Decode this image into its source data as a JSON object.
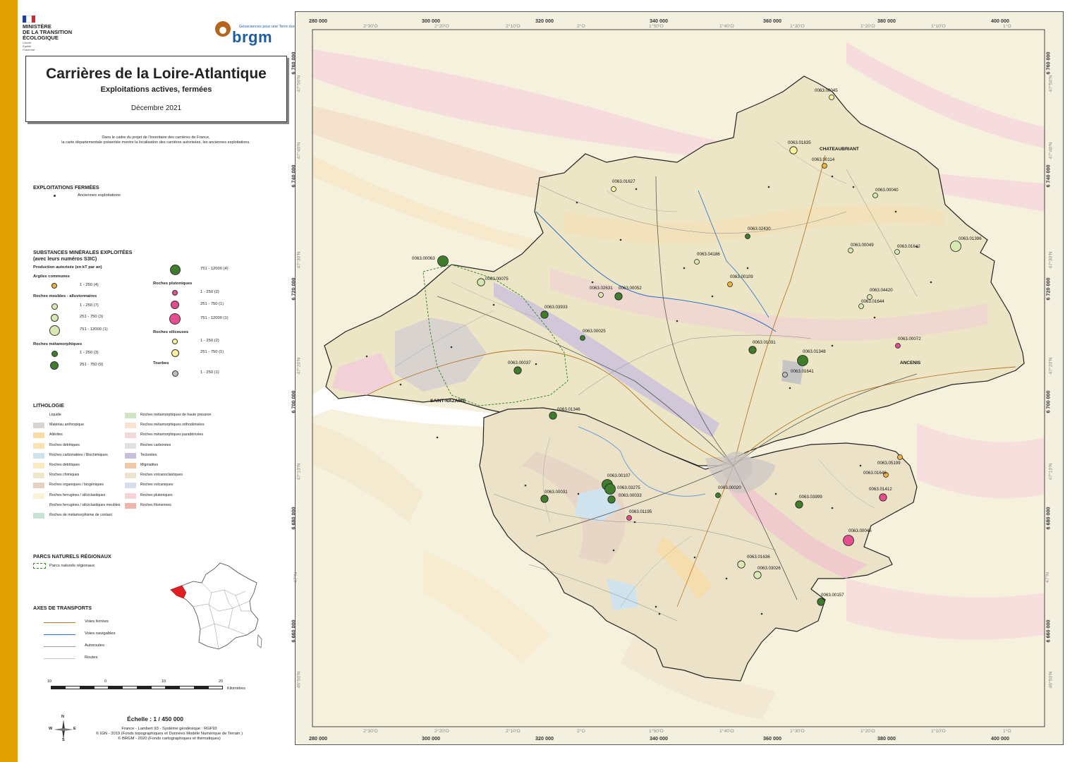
{
  "header": {
    "ministry": "MINISTÈRE\nDE LA TRANSITION\nÉCOLOGIQUE",
    "ministry_motto": "Liberté\nÉgalité\nFraternité",
    "brgm_tagline": "Géosciences pour une Terre durable",
    "brgm_name": "brgm"
  },
  "title": {
    "main": "Carrières de la Loire-Atlantique",
    "subtitle": "Exploitations actives, fermées",
    "date": "Décembre 2021"
  },
  "intro": "Dans le cadre du projet de l'inventaire des carrières de France,\nla carte départementale présentée montre la localisation des carrières autorisées, les anciennes exploitations.",
  "legend": {
    "closed": {
      "heading": "EXPLOITATIONS FERMÉES",
      "item": "Anciennes exploitations"
    },
    "substances": {
      "heading": "SUBSTANCES MINÉRALES EXPLOITÉES",
      "heading2": "(avec leurs numéros S3IC)",
      "production": "Production autorisée (en kT par an)",
      "groups": [
        {
          "name": "Argiles communes",
          "items": [
            {
              "label": "1 - 250 (4)",
              "color": "#f0b43c"
            }
          ]
        },
        {
          "name": "Roches meubles - alluvionnaires",
          "items": [
            {
              "label": "1 - 250 (7)",
              "color": "#d7e8b0"
            },
            {
              "label": "251 - 750 (3)",
              "color": "#d7e8b0"
            },
            {
              "label": "751 - 12000 (1)",
              "color": "#d7e8b0"
            }
          ]
        },
        {
          "name": "Roches métamorphiques",
          "items": [
            {
              "label": "1 - 250 (3)",
              "color": "#3f7d2c"
            },
            {
              "label": "251 - 750 (9)",
              "color": "#3f7d2c"
            },
            {
              "label": "751 - 12000 (4)",
              "color": "#3f7d2c"
            }
          ]
        },
        {
          "name": "Roches plutoniques",
          "items": [
            {
              "label": "1 - 250 (2)",
              "color": "#e64d8f"
            },
            {
              "label": "251 - 750 (1)",
              "color": "#e64d8f"
            },
            {
              "label": "751 - 12000 (1)",
              "color": "#e64d8f"
            }
          ]
        },
        {
          "name": "Roches siliceuses",
          "items": [
            {
              "label": "1 - 250 (2)",
              "color": "#fbf2a0"
            },
            {
              "label": "251 - 750 (1)",
              "color": "#fbf2a0"
            }
          ]
        },
        {
          "name": "Tourbes",
          "items": [
            {
              "label": "1 - 250 (1)",
              "color": "#bdbdbd"
            }
          ]
        }
      ]
    },
    "lithology": {
      "heading": "LITHOLOGIE",
      "col1": [
        {
          "label": "Liquide",
          "color": "#ffffff"
        },
        {
          "label": "Matériau anthropique",
          "color": "#d9d4d0"
        },
        {
          "label": "Altérites",
          "color": "#f7dca8"
        },
        {
          "label": "Roches détritiques",
          "color": "#f9e3b0"
        },
        {
          "label": "Roches carbonatées / Biochimiques",
          "color": "#cfe3ef"
        },
        {
          "label": "Roches détritiques",
          "color": "#f7ecbf"
        },
        {
          "label": "Roches chimiques",
          "color": "#efe8c8"
        },
        {
          "label": "Roches organiques / biogéniques",
          "color": "#e6d2c4"
        },
        {
          "label": "Roches ferrugines / siliciclastiques",
          "color": "#f8f3d4"
        },
        {
          "label": "Roches ferrugines / siliciclastiques meubles",
          "color": "#ffffff"
        },
        {
          "label": "Roches de métamorphisme de contact",
          "color": "#c9e0d5"
        }
      ],
      "col2": [
        {
          "label": "Roches métamorphiques de haute pression",
          "color": "#cfe6c3"
        },
        {
          "label": "Roches métamorphiques orthodérivées",
          "color": "#fce3d0"
        },
        {
          "label": "Roches métamorphiques paradérivées",
          "color": "#f2d9d8"
        },
        {
          "label": "Roches carbonées",
          "color": "#e3e0e0"
        },
        {
          "label": "Tectonites",
          "color": "#c9bfdc"
        },
        {
          "label": "Migmatites",
          "color": "#f2c9a8"
        },
        {
          "label": "Roches volcanoclastiques",
          "color": "#ede3cf"
        },
        {
          "label": "Roches volcaniques",
          "color": "#d8ddef"
        },
        {
          "label": "Roches plutoniques",
          "color": "#f7d2d6"
        },
        {
          "label": "Roches filoniennes",
          "color": "#f2b3a8"
        }
      ]
    },
    "parks": {
      "heading": "PARCS NATURELS RÉGIONAUX",
      "item": "Parcs naturels régionaux"
    },
    "transport": {
      "heading": "AXES DE TRANSPORTS",
      "items": [
        {
          "label": "Voies ferrées",
          "color": "#b5782a"
        },
        {
          "label": "Voies navigables",
          "color": "#2a6fc9"
        },
        {
          "label": "Autoroutes",
          "color": "#9a9a9a"
        },
        {
          "label": "Routes",
          "color": "#c8c8c8"
        }
      ]
    }
  },
  "scale": {
    "ticks": [
      "10",
      "0",
      "10",
      "20"
    ],
    "unit": "Kilomètres",
    "text": "Échelle : 1 / 450 000"
  },
  "compass": {
    "n": "N",
    "s": "S",
    "e": "E",
    "w": "W"
  },
  "footer": "France - Lambert 93 - Système géodésique : RGF93\n© IGN - 2019 (Fonds topographiques et Données Modèle Numérique de Terrain )\n© BRGM - 2020 (Fonds cartographiques et thématiques)",
  "map": {
    "x_ticks": [
      "280 000",
      "300 000",
      "320 000",
      "340 000",
      "360 000",
      "380 000",
      "400 000"
    ],
    "y_ticks": [
      "6 760 000",
      "6 740 000",
      "6 720 000",
      "6 700 000",
      "6 680 000",
      "6 660 000"
    ],
    "lon_ticks": [
      "2°30'O",
      "2°20'O",
      "2°10'O",
      "2°O",
      "1°50'O",
      "1°40'O",
      "1°30'O",
      "1°20'O",
      "1°10'O",
      "1°O"
    ],
    "lat_ticks": [
      "47°50'N",
      "47°40'N",
      "47°30'N",
      "47°20'N",
      "47°10'N",
      "47°N",
      "46°50'N"
    ],
    "cities": [
      "CHATEAUBRIANT",
      "ANCENIS",
      "SAINT-NAZAIRE"
    ],
    "quarries": [
      {
        "id": "0063.00045",
        "type": "Roches siliceuses",
        "color": "#fbf2a0",
        "size": 1
      },
      {
        "id": "0063.01835",
        "type": "Roches siliceuses",
        "color": "#fbf2a0",
        "size": 2
      },
      {
        "id": "0063.00114",
        "type": "Argiles communes",
        "color": "#f0b43c",
        "size": 1
      },
      {
        "id": "0063.01627",
        "type": "Roches siliceuses",
        "color": "#fbf2a0",
        "size": 1
      },
      {
        "id": "0063.00040",
        "type": "Roches meubles - alluvionnaires",
        "color": "#d7e8b0",
        "size": 1
      },
      {
        "id": "0063.02430",
        "type": "Roches métamorphiques",
        "color": "#3f7d2c",
        "size": 1
      },
      {
        "id": "0063.00049",
        "type": "Roches meubles - alluvionnaires",
        "color": "#d7e8b0",
        "size": 1
      },
      {
        "id": "0063.01642",
        "type": "Roches meubles - alluvionnaires",
        "color": "#d7e8b0",
        "size": 1
      },
      {
        "id": "0063.01396",
        "type": "Roches meubles - alluvionnaires",
        "color": "#d7e8b0",
        "size": 3
      },
      {
        "id": "0063.04186",
        "type": "Roches meubles - alluvionnaires",
        "color": "#d7e8b0",
        "size": 1
      },
      {
        "id": "0063.00063",
        "type": "Roches métamorphiques",
        "color": "#3f7d2c",
        "size": 3
      },
      {
        "id": "0063.00109",
        "type": "Argiles communes",
        "color": "#f0b43c",
        "size": 1
      },
      {
        "id": "0063.00075",
        "type": "Roches meubles - alluvionnaires",
        "color": "#d7e8b0",
        "size": 2
      },
      {
        "id": "0063.02631",
        "type": "Roches meubles - alluvionnaires",
        "color": "#d7e8b0",
        "size": 1
      },
      {
        "id": "0063.00052",
        "type": "Roches métamorphiques",
        "color": "#3f7d2c",
        "size": 2
      },
      {
        "id": "0063.04420",
        "type": "Roches meubles - alluvionnaires",
        "color": "#d7e8b0",
        "size": 1
      },
      {
        "id": "0063.01644",
        "type": "Roches meubles - alluvionnaires",
        "color": "#d7e8b0",
        "size": 1
      },
      {
        "id": "0063.03933",
        "type": "Roches métamorphiques",
        "color": "#3f7d2c",
        "size": 2
      },
      {
        "id": "0063.00025",
        "type": "Roches métamorphiques",
        "color": "#3f7d2c",
        "size": 1
      },
      {
        "id": "0063.00072",
        "type": "Roches plutoniques",
        "color": "#e64d8f",
        "size": 1
      },
      {
        "id": "0063.01031",
        "type": "Roches métamorphiques",
        "color": "#3f7d2c",
        "size": 2
      },
      {
        "id": "0063.01348",
        "type": "Roches métamorphiques",
        "color": "#3f7d2c",
        "size": 3
      },
      {
        "id": "0063.01641",
        "type": "Tourbes",
        "color": "#bdbdbd",
        "size": 1
      },
      {
        "id": "0063.00037",
        "type": "Roches métamorphiques",
        "color": "#3f7d2c",
        "size": 2
      },
      {
        "id": "0063.01346",
        "type": "Roches métamorphiques",
        "color": "#3f7d2c",
        "size": 2
      },
      {
        "id": "0063.05199",
        "type": "Argiles communes",
        "color": "#f0b43c",
        "size": 1
      },
      {
        "id": "0063.01646",
        "type": "Argiles communes",
        "color": "#f0b43c",
        "size": 1
      },
      {
        "id": "0063.00107",
        "type": "Roches métamorphiques",
        "color": "#3f7d2c",
        "size": 3
      },
      {
        "id": "0063.03275",
        "type": "Roches métamorphiques",
        "color": "#3f7d2c",
        "size": 3
      },
      {
        "id": "0063.00031",
        "type": "Roches métamorphiques",
        "color": "#3f7d2c",
        "size": 2
      },
      {
        "id": "0063.00033",
        "type": "Roches métamorphiques",
        "color": "#3f7d2c",
        "size": 2
      },
      {
        "id": "0063.00020",
        "type": "Roches métamorphiques",
        "color": "#3f7d2c",
        "size": 1
      },
      {
        "id": "0063.01412",
        "type": "Roches plutoniques",
        "color": "#e64d8f",
        "size": 2
      },
      {
        "id": "0063.03999",
        "type": "Roches métamorphiques",
        "color": "#3f7d2c",
        "size": 2
      },
      {
        "id": "0063.01195",
        "type": "Roches plutoniques",
        "color": "#e64d8f",
        "size": 1
      },
      {
        "id": "0063.00046",
        "type": "Roches plutoniques",
        "color": "#e64d8f",
        "size": 3
      },
      {
        "id": "0063.01636",
        "type": "Roches meubles - alluvionnaires",
        "color": "#d7e8b0",
        "size": 2
      },
      {
        "id": "0063.03026",
        "type": "Roches meubles - alluvionnaires",
        "color": "#d7e8b0",
        "size": 2
      },
      {
        "id": "0063.00157",
        "type": "Roches métamorphiques",
        "color": "#3f7d2c",
        "size": 2
      }
    ]
  }
}
